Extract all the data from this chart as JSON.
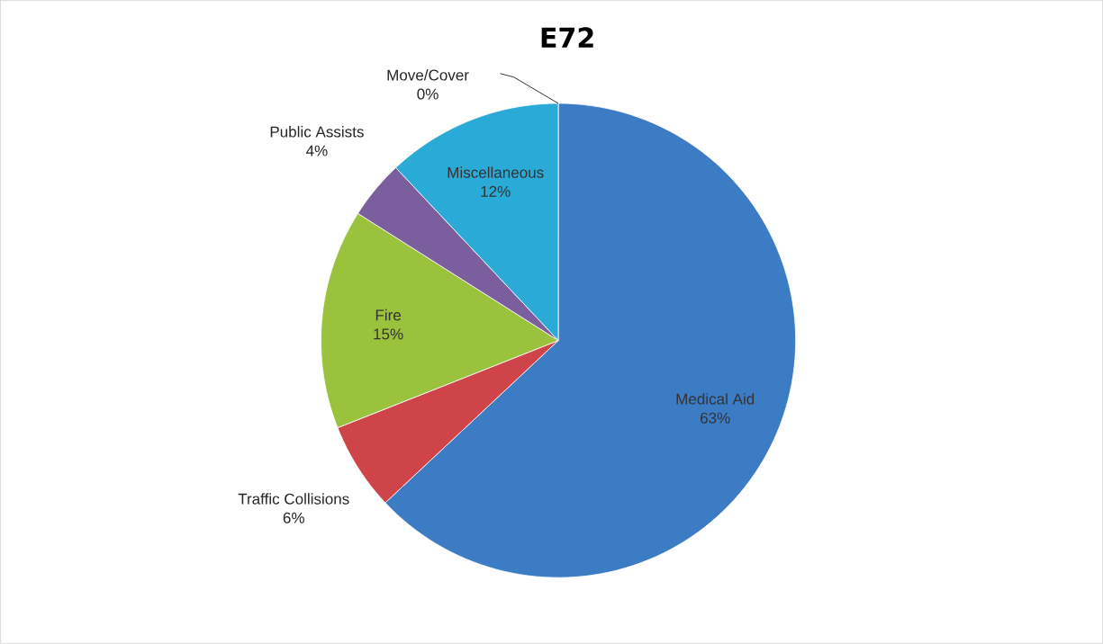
{
  "chart_data": {
    "type": "pie",
    "title": "E72",
    "categories": [
      "Medical Aid",
      "Traffic Collisions",
      "Fire",
      "Public Assists",
      "Miscellaneous",
      "Move/Cover"
    ],
    "values": [
      63,
      6,
      15,
      4,
      12,
      0
    ],
    "value_labels": [
      "63%",
      "6%",
      "15%",
      "4%",
      "12%",
      "0%"
    ],
    "colors": [
      "#3b7cc4",
      "#cf4448",
      "#9bc23c",
      "#7a5e9e",
      "#2aaad6",
      "#f08c2c"
    ]
  }
}
